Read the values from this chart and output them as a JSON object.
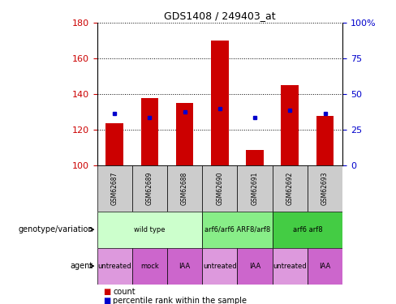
{
  "title": "GDS1408 / 249403_at",
  "samples": [
    "GSM62687",
    "GSM62689",
    "GSM62688",
    "GSM62690",
    "GSM62691",
    "GSM62692",
    "GSM62693"
  ],
  "count_values": [
    124,
    138,
    135,
    170,
    109,
    145,
    128
  ],
  "percentile_values": [
    129,
    127,
    130,
    132,
    127,
    131,
    129
  ],
  "ylim_left": [
    100,
    180
  ],
  "ylim_right": [
    0,
    100
  ],
  "yticks_left": [
    100,
    120,
    140,
    160,
    180
  ],
  "yticks_right": [
    0,
    25,
    50,
    75,
    100
  ],
  "yticklabels_right": [
    "0",
    "25",
    "50",
    "75",
    "100%"
  ],
  "bar_color": "#cc0000",
  "dot_color": "#0000cc",
  "bar_bottom": 100,
  "genotype_groups": [
    {
      "label": "wild type",
      "start": 0,
      "end": 3,
      "color": "#ccffcc"
    },
    {
      "label": "arf6/arf6 ARF8/arf8",
      "start": 3,
      "end": 5,
      "color": "#88ee88"
    },
    {
      "label": "arf6 arf8",
      "start": 5,
      "end": 7,
      "color": "#44cc44"
    }
  ],
  "agent_groups": [
    {
      "label": "untreated",
      "start": 0,
      "end": 1,
      "color": "#dd99dd"
    },
    {
      "label": "mock",
      "start": 1,
      "end": 2,
      "color": "#cc66cc"
    },
    {
      "label": "IAA",
      "start": 2,
      "end": 3,
      "color": "#cc66cc"
    },
    {
      "label": "untreated",
      "start": 3,
      "end": 4,
      "color": "#dd99dd"
    },
    {
      "label": "IAA",
      "start": 4,
      "end": 5,
      "color": "#cc66cc"
    },
    {
      "label": "untreated",
      "start": 5,
      "end": 6,
      "color": "#dd99dd"
    },
    {
      "label": "IAA",
      "start": 6,
      "end": 7,
      "color": "#cc66cc"
    }
  ],
  "legend_count_label": "count",
  "legend_pct_label": "percentile rank within the sample",
  "genotype_label": "genotype/variation",
  "agent_label": "agent",
  "tick_color_left": "#cc0000",
  "tick_color_right": "#0000cc",
  "sample_bg_color": "#cccccc",
  "plot_bg_color": "#ffffff"
}
